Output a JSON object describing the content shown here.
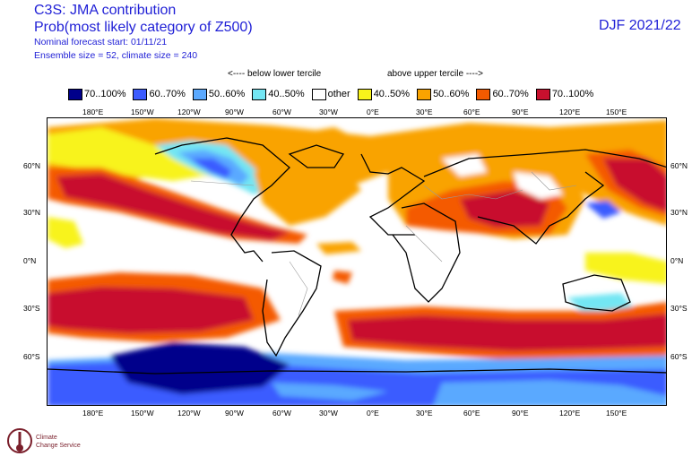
{
  "header": {
    "title_line1": "C3S: JMA contribution",
    "title_line2": "Prob(most likely category of Z500)",
    "forecast_start": "Nominal forecast start: 01/11/21",
    "ensemble": "Ensemble size = 52, climate size = 240",
    "season": "DJF 2021/22"
  },
  "legend": {
    "below_label": "<---- below lower tercile",
    "above_label": "above upper tercile ---->",
    "items": [
      {
        "label": "70..100%",
        "color": "#00008b"
      },
      {
        "label": "60..70%",
        "color": "#3b5bff"
      },
      {
        "label": "50..60%",
        "color": "#5aa9ff"
      },
      {
        "label": "40..50%",
        "color": "#73e6f3"
      },
      {
        "label": "other",
        "color": "#ffffff"
      },
      {
        "label": "40..50%",
        "color": "#f8f31b"
      },
      {
        "label": "50..60%",
        "color": "#f9a300"
      },
      {
        "label": "60..70%",
        "color": "#f45a00"
      },
      {
        "label": "70..100%",
        "color": "#c8102e"
      }
    ]
  },
  "map": {
    "lon_labels": [
      "180°E",
      "150°W",
      "120°W",
      "90°W",
      "60°W",
      "30°W",
      "0°E",
      "30°E",
      "60°E",
      "90°E",
      "120°E",
      "150°E"
    ],
    "lat_labels": [
      "60°N",
      "30°N",
      "0°N",
      "30°S",
      "60°S"
    ]
  },
  "logo": {
    "text_line1": "Climate",
    "text_line2": "Change Service"
  }
}
